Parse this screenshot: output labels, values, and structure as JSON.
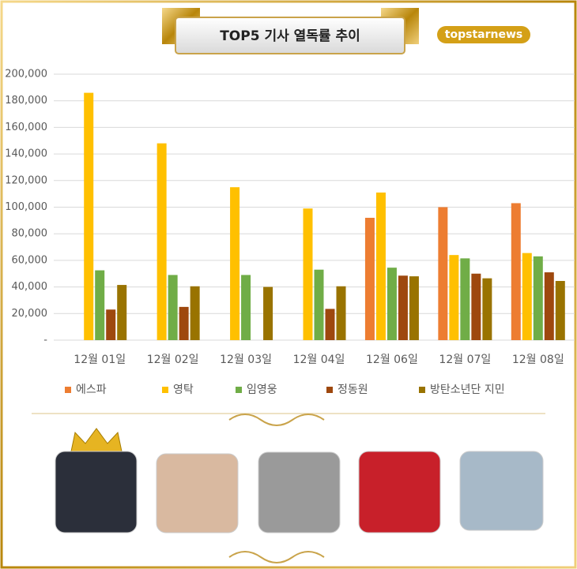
{
  "brand": "topstarnews",
  "chart_data": {
    "type": "bar",
    "title": "TOP5 기사 열독률 추이",
    "categories": [
      "12월 01일",
      "12월 02일",
      "12월 03일",
      "12월 04일",
      "12월 06일",
      "12월 07일",
      "12월 08일"
    ],
    "series": [
      {
        "name": "에스파",
        "color": "#ed7d31",
        "values": [
          null,
          null,
          null,
          null,
          92000,
          100000,
          103000
        ]
      },
      {
        "name": "영탁",
        "color": "#ffc000",
        "values": [
          186000,
          148000,
          115000,
          99000,
          111000,
          64000,
          65500
        ]
      },
      {
        "name": "임영웅",
        "color": "#70ad47",
        "values": [
          52500,
          49000,
          49000,
          53000,
          54500,
          61500,
          63000
        ]
      },
      {
        "name": "정동원",
        "color": "#9e480e",
        "values": [
          23000,
          25000,
          null,
          23500,
          48500,
          50000,
          51000
        ]
      },
      {
        "name": "방탄소년단 지민",
        "color": "#997300",
        "values": [
          41500,
          40500,
          40000,
          40500,
          48000,
          46500,
          44500
        ]
      }
    ],
    "ylim": [
      0,
      200000
    ],
    "yticks": [
      {
        "value": 0,
        "label": "-"
      },
      {
        "value": 20000,
        "label": "20,000"
      },
      {
        "value": 40000,
        "label": "40,000"
      },
      {
        "value": 60000,
        "label": "60,000"
      },
      {
        "value": 80000,
        "label": "80,000"
      },
      {
        "value": 100000,
        "label": "100,000"
      },
      {
        "value": 120000,
        "label": "120,000"
      },
      {
        "value": 140000,
        "label": "140,000"
      },
      {
        "value": 160000,
        "label": "160,000"
      },
      {
        "value": 180000,
        "label": "180,000"
      },
      {
        "value": 200000,
        "label": "200,000"
      }
    ],
    "grid": true,
    "legend": "bottom"
  }
}
